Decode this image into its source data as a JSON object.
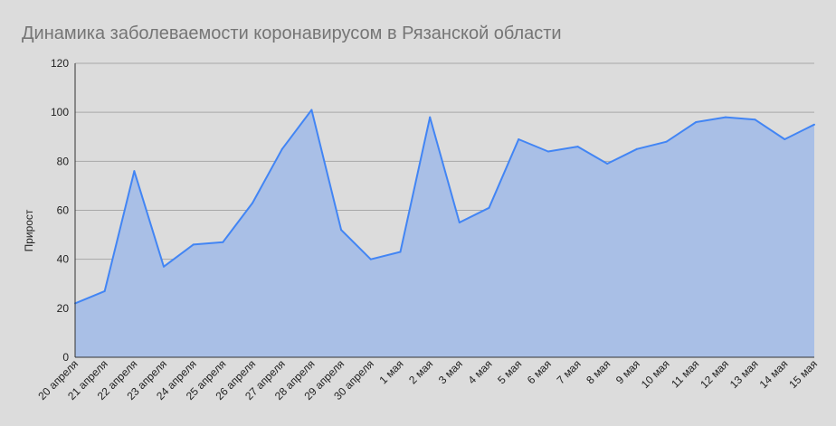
{
  "chart_data": {
    "type": "area",
    "title": "Динамика заболеваемости коронавирусом в Рязанской области",
    "xlabel": "",
    "ylabel": "Прирост",
    "ylim": [
      0,
      120
    ],
    "yticks": [
      0,
      20,
      40,
      60,
      80,
      100,
      120
    ],
    "grid": true,
    "legend": "none",
    "categories": [
      "20 апреля",
      "21 апреля",
      "22 апреля",
      "23 апреля",
      "24 апреля",
      "25 апреля",
      "26 апреля",
      "27 апреля",
      "28 апреля",
      "29 апреля",
      "30 апреля",
      "1 мая",
      "2 мая",
      "3 мая",
      "4 мая",
      "5 мая",
      "6 мая",
      "7 мая",
      "8 мая",
      "9 мая",
      "10 мая",
      "11 мая",
      "12 мая",
      "13 мая",
      "14 мая",
      "15 мая"
    ],
    "series": [
      {
        "values": [
          22,
          27,
          76,
          37,
          46,
          47,
          63,
          85,
          101,
          52,
          40,
          43,
          98,
          55,
          61,
          89,
          84,
          86,
          79,
          85,
          88,
          96,
          98,
          97,
          89,
          95
        ],
        "color": "#4285f4",
        "fill": "#a9bfe6"
      }
    ]
  }
}
